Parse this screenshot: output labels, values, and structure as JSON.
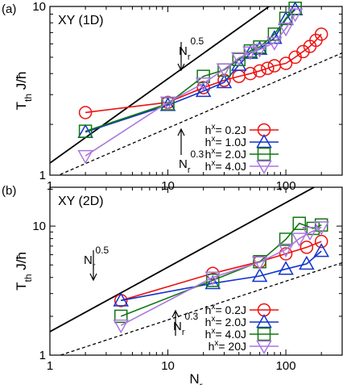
{
  "chart_data": [
    {
      "type": "scatter",
      "panel_label": "(a)",
      "title": "XY (1D)",
      "xlabel": "",
      "ylabel": "T_th J/ħ",
      "xscale": "log",
      "yscale": "log",
      "xlim": [
        1,
        300
      ],
      "ylim": [
        1,
        10
      ],
      "x_ticks": [
        "1",
        "10",
        "100"
      ],
      "y_ticks": [
        "1",
        "10"
      ],
      "annotations": [
        {
          "base": "N",
          "sub": "r",
          "sup": "0.5",
          "line": "solid"
        },
        {
          "base": "N",
          "sub": "r",
          "sup": "0.3",
          "line": "dashed"
        }
      ],
      "reference_lines": [
        {
          "style": "solid",
          "exponent": 0.5,
          "points": [
            [
              1,
              1.18
            ],
            [
              300,
              20.4
            ]
          ]
        },
        {
          "style": "dashed",
          "exponent": 0.3,
          "points": [
            [
              1,
              0.95
            ],
            [
              300,
              5.3
            ]
          ]
        }
      ],
      "series": [
        {
          "name": "0.2J",
          "color": "#ee1111",
          "marker": "circle",
          "x": [
            2,
            10,
            20,
            30,
            40,
            50,
            60,
            70,
            80,
            100,
            120,
            140,
            160,
            180,
            200
          ],
          "y": [
            2.35,
            2.7,
            3.3,
            3.65,
            3.85,
            4.0,
            4.15,
            4.3,
            4.45,
            4.6,
            5.0,
            5.4,
            5.8,
            6.3,
            6.85
          ]
        },
        {
          "name": "1.0J",
          "color": "#1133cc",
          "marker": "triangle-up",
          "x": [
            2,
            10,
            20,
            30,
            40,
            50,
            60,
            80,
            100,
            120
          ],
          "y": [
            1.8,
            2.6,
            3.15,
            3.55,
            4.5,
            5.3,
            5.6,
            6.5,
            8.4,
            9.6
          ]
        },
        {
          "name": "2.0J",
          "color": "#117711",
          "marker": "square",
          "x": [
            2,
            10,
            20,
            30,
            40,
            50,
            60,
            80,
            100,
            120
          ],
          "y": [
            1.82,
            2.65,
            3.85,
            4.2,
            4.85,
            5.45,
            5.75,
            6.85,
            8.5,
            9.75
          ]
        },
        {
          "name": "4.0J",
          "color": "#aa77dd",
          "marker": "triangle-down",
          "x": [
            2,
            10,
            20,
            30,
            40,
            50,
            60,
            80,
            100,
            120
          ],
          "y": [
            1.3,
            2.7,
            3.5,
            4.25,
            4.95,
            5.35,
            5.55,
            6.1,
            7.4,
            9.0
          ]
        }
      ],
      "legend": {
        "placement": "bottom-right",
        "prefix": "h"
      }
    },
    {
      "type": "scatter",
      "panel_label": "(b)",
      "title": "XY (2D)",
      "xlabel": "N_r",
      "ylabel": "T_th J/ħ",
      "xscale": "log",
      "yscale": "log",
      "xlim": [
        1,
        300
      ],
      "ylim": [
        1,
        20
      ],
      "x_ticks": [
        "1",
        "10",
        "100"
      ],
      "y_ticks": [
        "1",
        "10"
      ],
      "annotations": [
        {
          "base": "N",
          "sub": "r",
          "sup": "0.5",
          "line": "solid"
        },
        {
          "base": "N",
          "sub": "r",
          "sup": "0.3",
          "line": "dashed"
        }
      ],
      "reference_lines": [
        {
          "style": "solid",
          "exponent": 0.5,
          "points": [
            [
              1,
              1.52
            ],
            [
              300,
              26.3
            ]
          ]
        },
        {
          "style": "dashed",
          "exponent": 0.3,
          "points": [
            [
              1,
              0.94
            ],
            [
              300,
              5.2
            ]
          ]
        }
      ],
      "series": [
        {
          "name": "0.2J",
          "color": "#ee1111",
          "marker": "circle",
          "x": [
            4,
            24,
            60,
            100,
            150,
            200
          ],
          "y": [
            2.65,
            4.3,
            5.3,
            6.1,
            6.85,
            7.6
          ]
        },
        {
          "name": "2.0J",
          "color": "#1133cc",
          "marker": "triangle-up",
          "x": [
            4,
            24,
            60,
            100,
            150,
            200
          ],
          "y": [
            2.65,
            3.6,
            4.1,
            4.65,
            5.1,
            6.4
          ]
        },
        {
          "name": "4.0J",
          "color": "#117711",
          "marker": "square",
          "x": [
            4,
            24,
            60,
            100,
            130,
            170,
            200
          ],
          "y": [
            2.0,
            3.8,
            5.3,
            7.9,
            10.5,
            9.6,
            10.2
          ]
        },
        {
          "name": "20J",
          "color": "#aa77dd",
          "marker": "triangle-down",
          "x": [
            4,
            24,
            60,
            100,
            130,
            160,
            200
          ],
          "y": [
            1.7,
            4.0,
            5.25,
            6.6,
            8.0,
            8.9,
            9.8
          ]
        }
      ],
      "legend": {
        "placement": "bottom-right",
        "prefix": "h"
      }
    }
  ]
}
